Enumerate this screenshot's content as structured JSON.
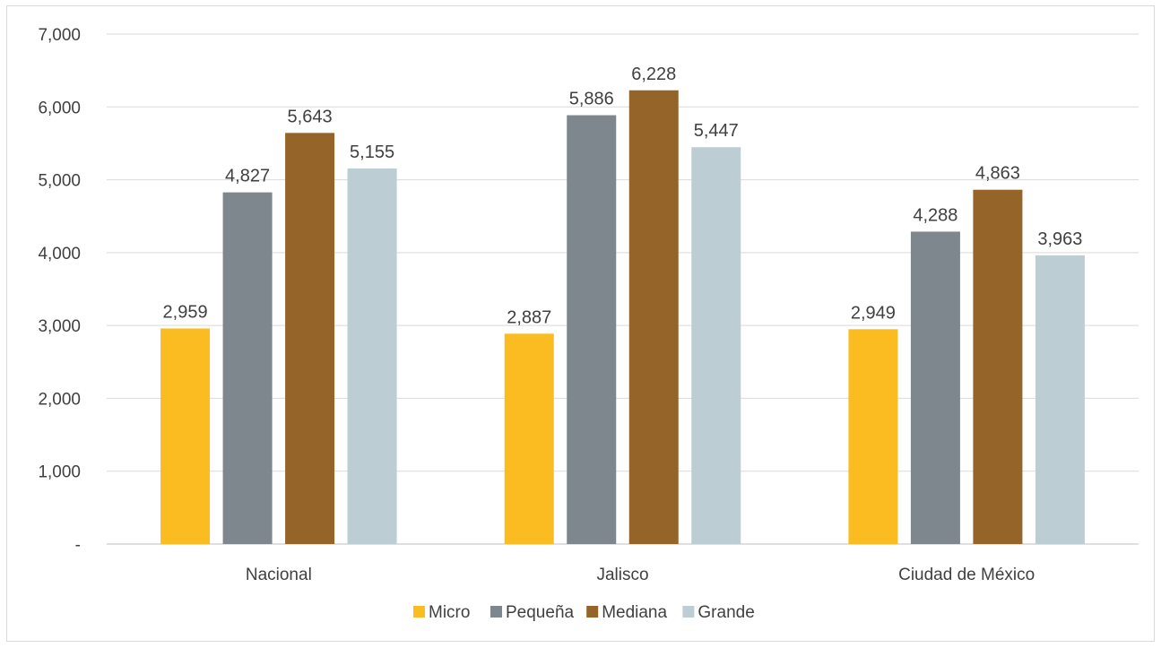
{
  "chart_data": {
    "type": "bar",
    "title": "",
    "xlabel": "",
    "ylabel": "",
    "categories": [
      "Nacional",
      "Jalisco",
      "Ciudad de México"
    ],
    "series": [
      {
        "name": "Micro",
        "values": [
          2959,
          2887,
          2949
        ],
        "labels": [
          "2,959",
          "2,887",
          "2,949"
        ],
        "color": "#fbbc22"
      },
      {
        "name": "Pequeña",
        "values": [
          4827,
          5886,
          4288
        ],
        "labels": [
          "4,827",
          "5,886",
          "4,288"
        ],
        "color": "#7e878d"
      },
      {
        "name": "Mediana",
        "values": [
          5643,
          6228,
          4863
        ],
        "labels": [
          "5,643",
          "6,228",
          "4,863"
        ],
        "color": "#946429"
      },
      {
        "name": "Grande",
        "values": [
          5155,
          5447,
          3963
        ],
        "labels": [
          "5,155",
          "5,447",
          "3,963"
        ],
        "color": "#bccdd3"
      }
    ],
    "ylim": [
      0,
      7000
    ],
    "yticks": [
      0,
      1000,
      2000,
      3000,
      4000,
      5000,
      6000,
      7000
    ],
    "ytick_labels": [
      "-",
      "1,000",
      "2,000",
      "3,000",
      "4,000",
      "5,000",
      "6,000",
      "7,000"
    ],
    "grid": true,
    "legend_position": "bottom"
  }
}
